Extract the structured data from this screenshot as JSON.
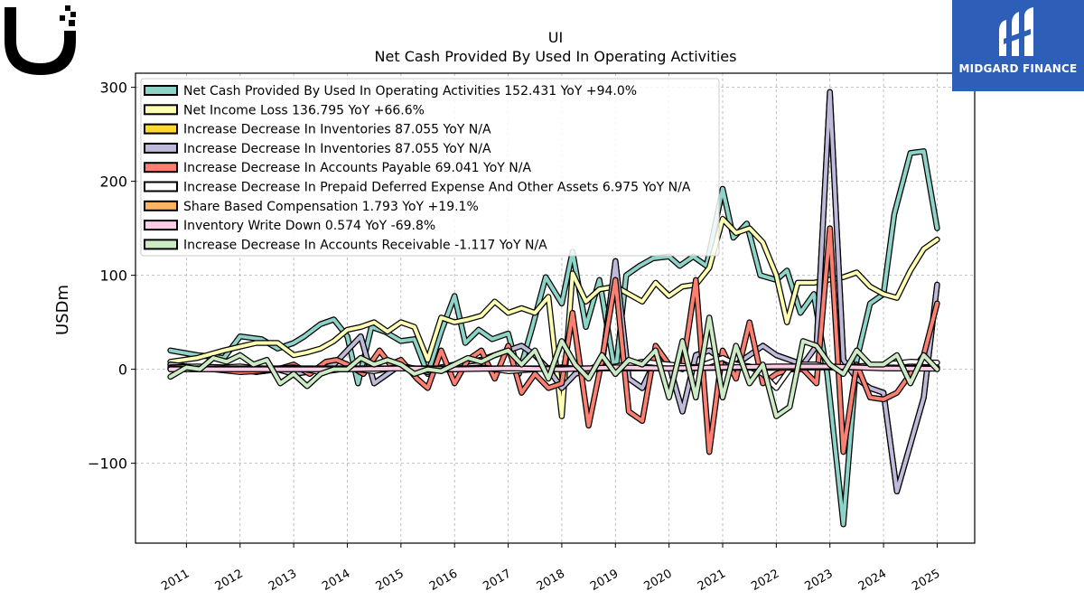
{
  "header": {
    "ticker": "UI"
  },
  "brand": {
    "logo_icon": "ubiquiti-u-logo-icon"
  },
  "partner": {
    "name": "MIDGARD FINANCE",
    "icon": "midgard-logo-icon",
    "bg_color": "#2d5fb8"
  },
  "chart_data": {
    "type": "line",
    "title": "UI",
    "subtitle": "Net Cash Provided By Used In Operating Activities",
    "ylabel": "USDm",
    "xlabel": "",
    "ylim": [
      -185,
      315
    ],
    "yticks": [
      -100,
      0,
      100,
      200,
      300
    ],
    "ytick_labels": [
      "−100",
      "0",
      "100",
      "200",
      "300"
    ],
    "xlim": [
      2010.05,
      2025.7
    ],
    "xticks": [
      2011,
      2012,
      2013,
      2014,
      2015,
      2016,
      2017,
      2018,
      2019,
      2020,
      2021,
      2022,
      2023,
      2024,
      2025
    ],
    "grid": true,
    "legend_position": "top-left",
    "series": [
      {
        "legend": "Net Cash Provided By Used In Operating Activities  152.431 YoY +94.0%",
        "color": "#8dd3c7",
        "x": [
          2010.7,
          2011.2,
          2011.7,
          2012.0,
          2012.4,
          2012.7,
          2013.0,
          2013.2,
          2013.5,
          2013.75,
          2014.0,
          2014.2,
          2014.45,
          2014.7,
          2015.0,
          2015.25,
          2015.5,
          2015.75,
          2016.0,
          2016.2,
          2016.45,
          2016.7,
          2017.0,
          2017.2,
          2017.45,
          2017.7,
          2018.0,
          2018.2,
          2018.45,
          2018.7,
          2019.0,
          2019.2,
          2019.45,
          2019.7,
          2020.0,
          2020.2,
          2020.45,
          2020.7,
          2021.0,
          2021.2,
          2021.45,
          2021.7,
          2022.0,
          2022.2,
          2022.45,
          2022.7,
          2022.95,
          2023.25,
          2023.5,
          2023.75,
          2024.0,
          2024.2,
          2024.5,
          2024.75,
          2025.0
        ],
        "y": [
          20,
          15,
          12,
          35,
          32,
          22,
          28,
          35,
          48,
          53,
          35,
          -15,
          45,
          40,
          30,
          32,
          -5,
          40,
          78,
          28,
          42,
          32,
          38,
          -5,
          45,
          98,
          70,
          125,
          45,
          95,
          -5,
          100,
          110,
          118,
          120,
          110,
          120,
          110,
          192,
          140,
          155,
          100,
          95,
          105,
          60,
          80,
          -5,
          -165,
          10,
          70,
          80,
          165,
          230,
          232,
          150
        ]
      },
      {
        "legend": "Net Income Loss  136.795 YoY +66.6%",
        "color": "#ffffb3",
        "x": [
          2010.7,
          2011.2,
          2011.7,
          2012.0,
          2012.3,
          2012.7,
          2013.0,
          2013.25,
          2013.5,
          2013.75,
          2014.0,
          2014.25,
          2014.5,
          2014.75,
          2015.0,
          2015.25,
          2015.5,
          2015.75,
          2016.0,
          2016.25,
          2016.5,
          2016.75,
          2017.0,
          2017.25,
          2017.5,
          2017.75,
          2018.0,
          2018.2,
          2018.45,
          2018.7,
          2019.0,
          2019.25,
          2019.5,
          2019.75,
          2020.0,
          2020.25,
          2020.5,
          2020.75,
          2021.0,
          2021.25,
          2021.5,
          2021.75,
          2022.0,
          2022.2,
          2022.4,
          2022.7,
          2022.95,
          2023.25,
          2023.5,
          2023.75,
          2024.0,
          2024.25,
          2024.5,
          2024.75,
          2025.0
        ],
        "y": [
          8,
          12,
          20,
          24,
          28,
          28,
          15,
          18,
          22,
          30,
          42,
          45,
          50,
          40,
          50,
          45,
          10,
          55,
          50,
          53,
          57,
          72,
          60,
          65,
          60,
          77,
          -50,
          102,
          72,
          85,
          88,
          80,
          72,
          92,
          78,
          88,
          90,
          108,
          160,
          145,
          150,
          135,
          100,
          50,
          92,
          92,
          95,
          98,
          103,
          88,
          80,
          76,
          105,
          128,
          138
        ]
      },
      {
        "legend": "Increase Decrease In Inventories  87.055 YoY N/A",
        "color": "#ffd92f",
        "clone_of": 3
      },
      {
        "legend": "Increase Decrease In Inventories  87.055 YoY N/A",
        "color": "#bebada",
        "x": [
          2010.7,
          2011.0,
          2011.5,
          2012.0,
          2012.3,
          2012.7,
          2013.0,
          2013.25,
          2013.5,
          2013.75,
          2014.0,
          2014.25,
          2014.5,
          2014.75,
          2015.0,
          2015.25,
          2015.5,
          2015.75,
          2016.0,
          2016.25,
          2016.5,
          2016.75,
          2017.0,
          2017.25,
          2017.5,
          2017.75,
          2018.0,
          2018.25,
          2018.5,
          2018.75,
          2019.0,
          2019.25,
          2019.5,
          2019.75,
          2020.0,
          2020.25,
          2020.5,
          2020.75,
          2021.0,
          2021.25,
          2021.5,
          2021.75,
          2022.0,
          2022.25,
          2022.5,
          2022.75,
          2023.0,
          2023.25,
          2023.5,
          2023.75,
          2024.0,
          2024.25,
          2024.5,
          2024.75,
          2025.0
        ],
        "y": [
          5,
          3,
          2,
          0,
          -3,
          0,
          -5,
          -3,
          0,
          5,
          20,
          35,
          -15,
          -5,
          5,
          0,
          -3,
          2,
          5,
          8,
          10,
          15,
          20,
          25,
          15,
          0,
          -20,
          -5,
          0,
          5,
          115,
          -10,
          -20,
          10,
          5,
          -45,
          15,
          20,
          10,
          5,
          15,
          25,
          15,
          10,
          5,
          25,
          295,
          10,
          -10,
          -20,
          -25,
          -130,
          -80,
          -30,
          90
        ]
      },
      {
        "legend": "Increase Decrease In Accounts Payable  69.041 YoY N/A",
        "color": "#fb8072",
        "x": [
          2010.7,
          2011.0,
          2011.5,
          2012.0,
          2012.3,
          2012.7,
          2013.0,
          2013.3,
          2013.6,
          2013.8,
          2014.0,
          2014.3,
          2014.6,
          2014.8,
          2015.0,
          2015.3,
          2015.5,
          2015.75,
          2016.0,
          2016.25,
          2016.5,
          2016.75,
          2017.0,
          2017.25,
          2017.5,
          2017.75,
          2018.0,
          2018.2,
          2018.5,
          2018.75,
          2019.0,
          2019.25,
          2019.5,
          2019.75,
          2020.0,
          2020.25,
          2020.5,
          2020.75,
          2021.0,
          2021.25,
          2021.5,
          2021.75,
          2022.0,
          2022.25,
          2022.5,
          2022.75,
          2023.0,
          2023.25,
          2023.5,
          2023.75,
          2024.0,
          2024.25,
          2024.5,
          2024.75,
          2025.0
        ],
        "y": [
          0,
          2,
          0,
          -3,
          -2,
          0,
          5,
          -5,
          8,
          10,
          5,
          -5,
          20,
          5,
          10,
          -10,
          -20,
          20,
          -15,
          10,
          20,
          -10,
          25,
          -25,
          -5,
          -20,
          -15,
          60,
          -60,
          10,
          95,
          -45,
          -55,
          25,
          5,
          0,
          95,
          -88,
          20,
          -10,
          50,
          -15,
          -5,
          0,
          0,
          -15,
          150,
          -88,
          5,
          -30,
          -32,
          -25,
          -5,
          15,
          70
        ]
      },
      {
        "legend": "Increase Decrease In Prepaid Deferred Expense And Other Assets  6.975 YoY N/A",
        "color": "#ffffff",
        "x": [
          2010.7,
          2011.2,
          2011.7,
          2012.0,
          2012.5,
          2013.0,
          2013.5,
          2014.0,
          2014.5,
          2015.0,
          2015.5,
          2016.0,
          2016.5,
          2017.0,
          2017.5,
          2018.0,
          2018.5,
          2019.0,
          2019.5,
          2020.0,
          2020.5,
          2021.0,
          2021.25,
          2021.5,
          2021.75,
          2022.0,
          2022.25,
          2022.5,
          2022.75,
          2023.0,
          2023.5,
          2024.0,
          2024.5,
          2025.0
        ],
        "y": [
          2,
          3,
          2,
          3,
          0,
          2,
          -3,
          1,
          -2,
          3,
          -1,
          0,
          2,
          -2,
          0,
          2,
          -1,
          3,
          8,
          5,
          2,
          12,
          5,
          3,
          -5,
          -20,
          0,
          5,
          5,
          2,
          3,
          5,
          8,
          7
        ]
      },
      {
        "legend": "Share Based Compensation  1.793 YoY +19.1%",
        "color": "#fdb462",
        "x": [
          2010.7,
          2012.0,
          2013.0,
          2014.0,
          2015.0,
          2016.0,
          2017.0,
          2018.0,
          2019.0,
          2020.0,
          2021.0,
          2022.0,
          2023.0,
          2024.0,
          2024.5,
          2025.0
        ],
        "y": [
          1,
          1,
          1,
          1,
          1,
          1,
          1,
          1,
          1,
          1,
          1.5,
          1.5,
          2,
          2,
          1.5,
          1.8
        ]
      },
      {
        "legend": "Inventory Write Down  0.574 YoY -69.8%",
        "color": "#fccde5",
        "x": [
          2010.7,
          2012.0,
          2013.0,
          2014.0,
          2015.0,
          2016.0,
          2017.0,
          2018.0,
          2019.0,
          2020.0,
          2021.0,
          2022.0,
          2023.0,
          2024.0,
          2025.0
        ],
        "y": [
          0,
          0,
          0,
          0,
          1,
          0,
          1,
          0,
          2,
          1,
          2,
          3,
          3,
          1,
          0.6
        ]
      },
      {
        "legend": "Increase Decrease In Accounts Receivable  -1.117 YoY N/A",
        "color": "#ccebc5",
        "x": [
          2010.7,
          2011.0,
          2011.25,
          2011.5,
          2011.75,
          2012.0,
          2012.25,
          2012.5,
          2012.75,
          2013.0,
          2013.25,
          2013.5,
          2013.75,
          2014.0,
          2014.25,
          2014.5,
          2014.75,
          2015.0,
          2015.25,
          2015.5,
          2015.75,
          2016.0,
          2016.25,
          2016.5,
          2016.75,
          2017.0,
          2017.25,
          2017.5,
          2017.75,
          2018.0,
          2018.25,
          2018.5,
          2018.75,
          2019.0,
          2019.25,
          2019.5,
          2019.75,
          2020.0,
          2020.25,
          2020.5,
          2020.75,
          2021.0,
          2021.25,
          2021.5,
          2021.75,
          2022.0,
          2022.25,
          2022.5,
          2022.75,
          2023.0,
          2023.25,
          2023.5,
          2023.75,
          2024.0,
          2024.25,
          2024.5,
          2024.75,
          2025.0
        ],
        "y": [
          -8,
          2,
          0,
          12,
          8,
          15,
          5,
          10,
          -15,
          -5,
          -18,
          -5,
          0,
          0,
          12,
          5,
          10,
          5,
          -5,
          0,
          -2,
          5,
          12,
          8,
          15,
          20,
          5,
          20,
          -10,
          30,
          5,
          -10,
          15,
          -5,
          10,
          5,
          20,
          -30,
          30,
          -30,
          55,
          -30,
          25,
          -15,
          5,
          -50,
          -40,
          30,
          25,
          5,
          -5,
          20,
          5,
          5,
          15,
          -15,
          15,
          0
        ]
      }
    ]
  }
}
